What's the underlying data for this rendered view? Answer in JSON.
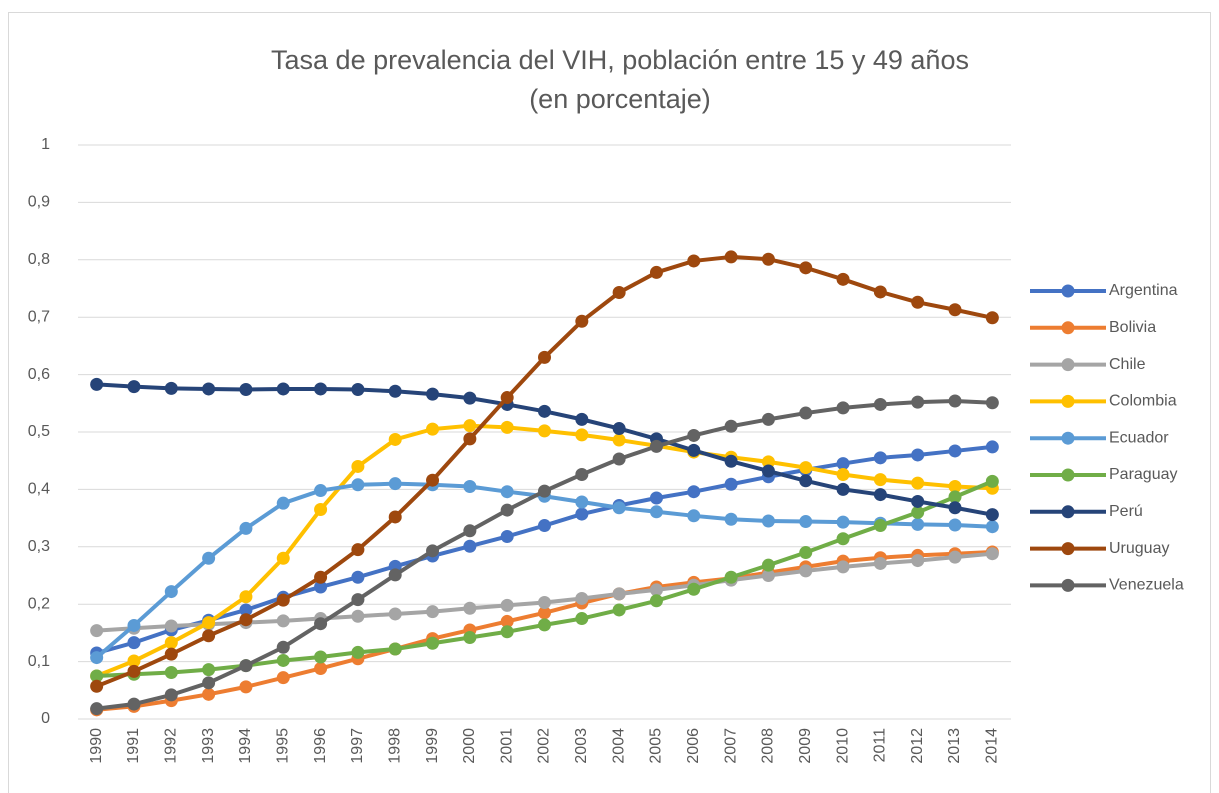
{
  "chart_data": {
    "type": "line",
    "title": [
      "Tasa de prevalencia del VIH, población entre 15 y 49 años",
      "(en porcentaje)"
    ],
    "categories": [
      "1990",
      "1991",
      "1992",
      "1993",
      "1994",
      "1995",
      "1996",
      "1997",
      "1998",
      "1999",
      "2000",
      "2001",
      "2002",
      "2003",
      "2004",
      "2005",
      "2006",
      "2007",
      "2008",
      "2009",
      "2010",
      "2011",
      "2012",
      "2013",
      "2014"
    ],
    "ylim": [
      0,
      1
    ],
    "yticks": [
      0,
      {
        "value": 0.1,
        "label": "0,1"
      },
      {
        "value": 0.2,
        "label": "0,2"
      },
      {
        "value": 0.3,
        "label": "0,3"
      },
      {
        "value": 0.4,
        "label": "0,4"
      },
      {
        "value": 0.5,
        "label": "0,5"
      },
      {
        "value": 0.6,
        "label": "0,6"
      },
      {
        "value": 0.7,
        "label": "0,7"
      },
      {
        "value": 0.8,
        "label": "0,8"
      },
      {
        "value": 0.9,
        "label": "0,9"
      },
      1
    ],
    "grid": true,
    "legend": "right",
    "series": [
      {
        "name": "Argentina",
        "color": "#4472c4",
        "values": [
          0.115,
          0.133,
          0.155,
          0.172,
          0.19,
          0.212,
          0.23,
          0.247,
          0.266,
          0.284,
          0.301,
          0.318,
          0.337,
          0.357,
          0.372,
          0.385,
          0.396,
          0.409,
          0.422,
          0.434,
          0.445,
          0.455,
          0.46,
          0.467,
          0.474
        ]
      },
      {
        "name": "Bolivia",
        "color": "#ed7d31",
        "values": [
          0.016,
          0.022,
          0.032,
          0.043,
          0.056,
          0.072,
          0.088,
          0.105,
          0.122,
          0.14,
          0.155,
          0.17,
          0.185,
          0.202,
          0.218,
          0.23,
          0.238,
          0.245,
          0.255,
          0.265,
          0.275,
          0.281,
          0.285,
          0.288,
          0.291
        ]
      },
      {
        "name": "Chile",
        "color": "#a5a5a5",
        "values": [
          0.154,
          0.158,
          0.162,
          0.165,
          0.168,
          0.171,
          0.175,
          0.179,
          0.183,
          0.187,
          0.193,
          0.198,
          0.203,
          0.21,
          0.218,
          0.225,
          0.233,
          0.242,
          0.25,
          0.258,
          0.265,
          0.271,
          0.276,
          0.282,
          0.288
        ]
      },
      {
        "name": "Colombia",
        "color": "#ffc000",
        "values": [
          0.075,
          0.101,
          0.133,
          0.168,
          0.213,
          0.28,
          0.365,
          0.44,
          0.487,
          0.505,
          0.511,
          0.508,
          0.502,
          0.495,
          0.486,
          0.476,
          0.465,
          0.456,
          0.448,
          0.438,
          0.426,
          0.417,
          0.411,
          0.405,
          0.402
        ]
      },
      {
        "name": "Ecuador",
        "color": "#5b9bd5",
        "values": [
          0.107,
          0.163,
          0.222,
          0.28,
          0.332,
          0.376,
          0.398,
          0.408,
          0.41,
          0.408,
          0.405,
          0.396,
          0.388,
          0.378,
          0.368,
          0.361,
          0.354,
          0.348,
          0.345,
          0.344,
          0.343,
          0.341,
          0.339,
          0.338,
          0.335
        ]
      },
      {
        "name": "Paraguay",
        "color": "#70ad47",
        "values": [
          0.075,
          0.078,
          0.081,
          0.086,
          0.093,
          0.102,
          0.108,
          0.116,
          0.122,
          0.132,
          0.142,
          0.152,
          0.164,
          0.175,
          0.19,
          0.206,
          0.226,
          0.247,
          0.268,
          0.29,
          0.314,
          0.337,
          0.36,
          0.387,
          0.414
        ]
      },
      {
        "name": "Perú",
        "color": "#264478",
        "values": [
          0.583,
          0.579,
          0.576,
          0.575,
          0.574,
          0.575,
          0.575,
          0.574,
          0.571,
          0.566,
          0.559,
          0.548,
          0.536,
          0.522,
          0.506,
          0.488,
          0.468,
          0.449,
          0.432,
          0.415,
          0.4,
          0.391,
          0.379,
          0.368,
          0.356
        ]
      },
      {
        "name": "Uruguay",
        "color": "#9e480e",
        "values": [
          0.057,
          0.083,
          0.113,
          0.145,
          0.173,
          0.207,
          0.247,
          0.295,
          0.352,
          0.416,
          0.488,
          0.56,
          0.63,
          0.693,
          0.743,
          0.778,
          0.798,
          0.805,
          0.801,
          0.786,
          0.766,
          0.744,
          0.726,
          0.713,
          0.699
        ]
      },
      {
        "name": "Venezuela",
        "color": "#636363",
        "values": [
          0.018,
          0.026,
          0.042,
          0.063,
          0.093,
          0.125,
          0.166,
          0.208,
          0.251,
          0.293,
          0.328,
          0.364,
          0.397,
          0.426,
          0.453,
          0.475,
          0.494,
          0.51,
          0.522,
          0.533,
          0.542,
          0.548,
          0.552,
          0.554,
          0.551
        ]
      }
    ]
  }
}
